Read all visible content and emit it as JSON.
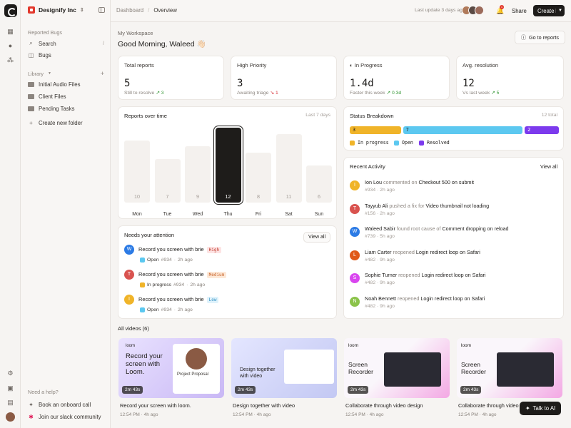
{
  "workspace": {
    "name": "Designify Inc"
  },
  "sidebar": {
    "section_reported": "Reported Bugs",
    "search_label": "Search",
    "search_shortcut": "/",
    "bugs_label": "Bugs",
    "section_library": "Library",
    "folders": [
      "Initial Audio Files",
      "Client Files",
      "Pending Tasks"
    ],
    "create_folder": "Create new folder",
    "help_title": "Need a help?",
    "help_items": [
      "Book an onboard call",
      "Join our slack community"
    ]
  },
  "topbar": {
    "crumb_root": "Dashboard",
    "crumb_current": "Overview",
    "last_update": "Last update 3 days ago",
    "notif_count": "1",
    "share": "Share",
    "create": "Create"
  },
  "header": {
    "subtitle": "My Workspace",
    "greeting": "Good Morning, Waleed 👋🏻",
    "go_reports": "Go to reports"
  },
  "stats": [
    {
      "label": "Total reports",
      "value": "5",
      "sub": "Still to resolve",
      "delta": "↗ 3",
      "dir": "up"
    },
    {
      "label": "High Priority",
      "value": "3",
      "sub": "Awaiting triage",
      "delta": "↘ 1",
      "dir": "down"
    },
    {
      "label": "In Progress",
      "value": "1.4d",
      "sub": "Faster this week",
      "delta": "↗ 0.3d",
      "dir": "up"
    },
    {
      "label": "Avg. resolution",
      "value": "12",
      "sub": "Vs last week",
      "delta": "↗ 5",
      "dir": "up"
    }
  ],
  "chart_data": {
    "type": "bar",
    "title": "Reports over time",
    "range": "Last 7 days",
    "categories": [
      "Mon",
      "Tue",
      "Wed",
      "Thu",
      "Fri",
      "Sat",
      "Sun"
    ],
    "values": [
      10,
      7,
      9,
      12,
      8,
      11,
      6
    ],
    "highlight": "Thu",
    "ylim": [
      0,
      12
    ]
  },
  "status": {
    "title": "Status Breakdown",
    "total": "12 total",
    "segments": [
      {
        "value": 3,
        "label": "3",
        "color": "#f0b429"
      },
      {
        "value": 7,
        "label": "7",
        "color": "#5cc8f0"
      },
      {
        "value": 2,
        "label": "2",
        "color": "#7c3aed"
      }
    ],
    "legend": [
      "In progress",
      "Open",
      "Resolved"
    ]
  },
  "attention": {
    "title": "Needs your attention",
    "view_all": "View all",
    "items": [
      {
        "initial": "W",
        "color": "#2c7be5",
        "title": "Record you screen with brie",
        "tag": "High",
        "tag_bg": "#fde3e3",
        "tag_fg": "#c0392b",
        "status": "Open",
        "status_color": "#5cc8f0",
        "id": "#934",
        "time": "2h ago"
      },
      {
        "initial": "T",
        "color": "#d9534f",
        "title": "Record you screen with brie",
        "tag": "Medium",
        "tag_bg": "#fde8d7",
        "tag_fg": "#c8642a",
        "status": "In progress",
        "status_color": "#f0b429",
        "id": "#934",
        "time": "2h ago"
      },
      {
        "initial": "I",
        "color": "#f0b429",
        "title": "Record you screen with brie",
        "tag": "Low",
        "tag_bg": "#dff2fb",
        "tag_fg": "#2a8cc0",
        "status": "Open",
        "status_color": "#5cc8f0",
        "id": "#934",
        "time": "2h ago"
      }
    ]
  },
  "activity": {
    "title": "Recent Activity",
    "view_all": "View all",
    "items": [
      {
        "initial": "I",
        "color": "#f0b429",
        "name": "Ion Lou",
        "verb": "commented on",
        "target": "Checkout 500 on submit",
        "id": "#934",
        "time": "2h ago"
      },
      {
        "initial": "T",
        "color": "#d9534f",
        "name": "Tayyub Ali",
        "verb": "pushed a fix for",
        "target": "Video thumbnail not loading",
        "id": "#156",
        "time": "2h ago"
      },
      {
        "initial": "W",
        "color": "#2c7be5",
        "name": "Waleed Sabir",
        "verb": "found root cause of",
        "target": "Comment dropping on reload",
        "id": "#739",
        "time": "5h ago"
      },
      {
        "initial": "L",
        "color": "#e05a1a",
        "name": "Liam Carter",
        "verb": "reopened",
        "target": "Login redirect loop on Safari",
        "id": "#482",
        "time": "9h ago"
      },
      {
        "initial": "S",
        "color": "#d946ef",
        "name": "Sophie Turner",
        "verb": "reopened",
        "target": "Login redirect loop on Safari",
        "id": "#482",
        "time": "9h ago"
      },
      {
        "initial": "N",
        "color": "#8bc34a",
        "name": "Noah Bennett",
        "verb": "reopened",
        "target": "Login redirect loop on Safari",
        "id": "#482",
        "time": "9h ago"
      }
    ]
  },
  "videos": {
    "heading": "All videos (6)",
    "items": [
      {
        "title": "Record your screen with loom.",
        "time": "12:54 PM",
        "ago": "4h ago",
        "duration": "2m 43s",
        "thumb_text": "Record your screen with Loom.",
        "brand": "loom",
        "extra": "Project Proposal"
      },
      {
        "title": "Design together with video",
        "time": "12:54 PM",
        "ago": "4h ago",
        "duration": "2m 43s",
        "thumb_text": "Design together with video",
        "brand": ""
      },
      {
        "title": "Collaborate through video design",
        "time": "12:54 PM",
        "ago": "4h ago",
        "duration": "2m 43s",
        "thumb_text": "Screen Recorder",
        "brand": "loom"
      },
      {
        "title": "Collaborate through video",
        "time": "12:54 PM",
        "ago": "4h ago",
        "duration": "2m 43s",
        "thumb_text": "Screen Recorder",
        "brand": "loom"
      }
    ]
  },
  "talk_ai": "Talk to AI"
}
